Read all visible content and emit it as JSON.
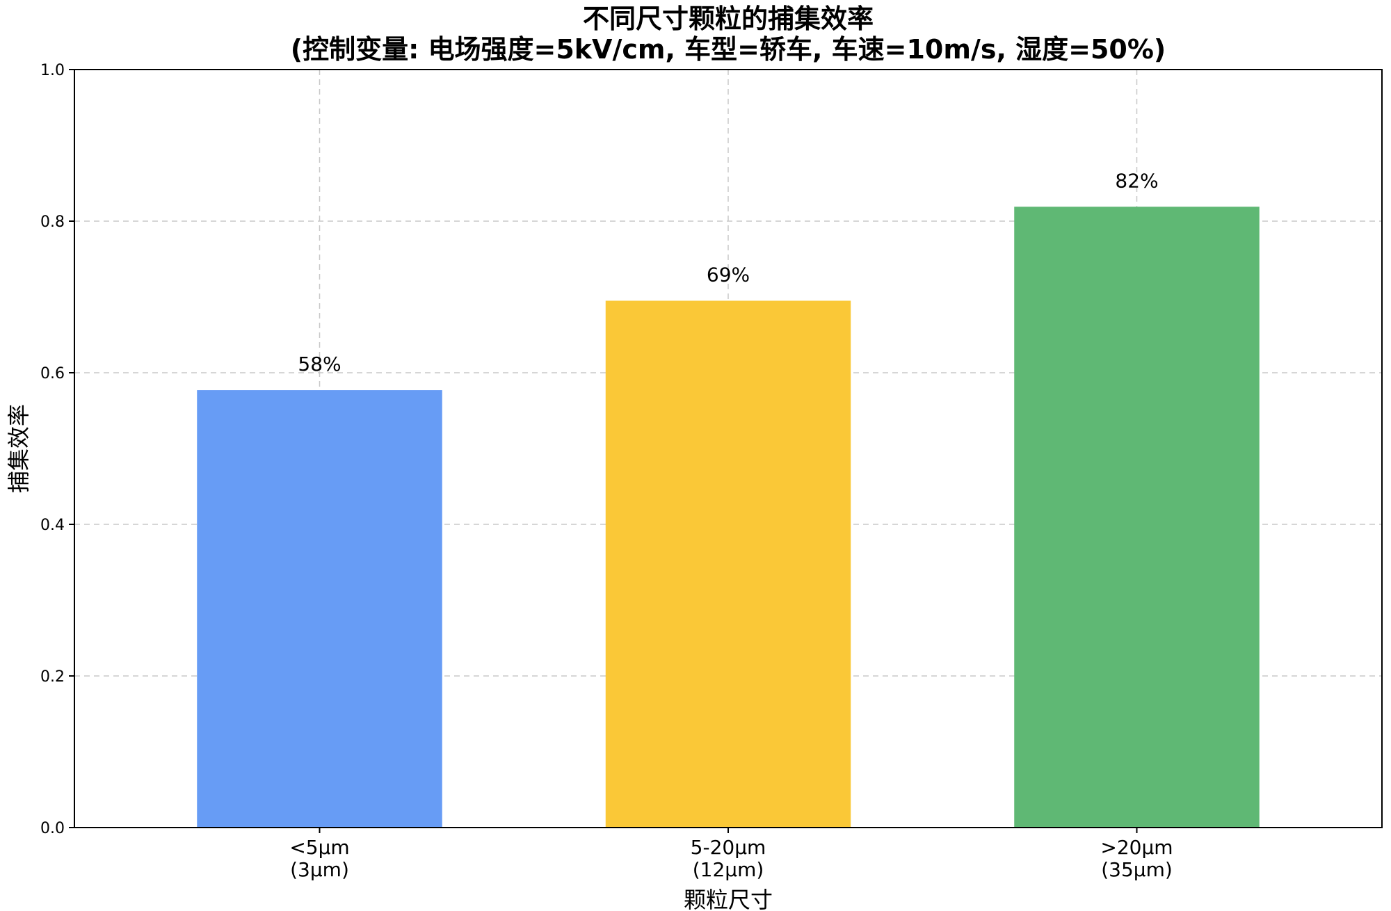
{
  "chart_data": {
    "type": "bar",
    "title": "不同尺寸颗粒的捕集效率",
    "subtitle": "(控制变量: 电场强度=5kV/cm, 车型=轿车, 车速=10m/s, 湿度=50%)",
    "xlabel": "颗粒尺寸",
    "ylabel": "捕集效率",
    "categories": [
      [
        "<5μm",
        "(3μm)"
      ],
      [
        "5-20μm",
        "(12μm)"
      ],
      [
        ">20μm",
        "(35μm)"
      ]
    ],
    "values": [
      0.577,
      0.695,
      0.819
    ],
    "data_labels": [
      "58%",
      "69%",
      "82%"
    ],
    "colors": [
      "#679cf5",
      "#fac837",
      "#5fb874"
    ],
    "ylim": [
      0,
      1.0
    ],
    "yticks": [
      0.0,
      0.2,
      0.4,
      0.6,
      0.8,
      1.0
    ],
    "ytick_labels": [
      "0.0",
      "0.2",
      "0.4",
      "0.6",
      "0.8",
      "1.0"
    ],
    "grid": true,
    "legend": "none"
  }
}
